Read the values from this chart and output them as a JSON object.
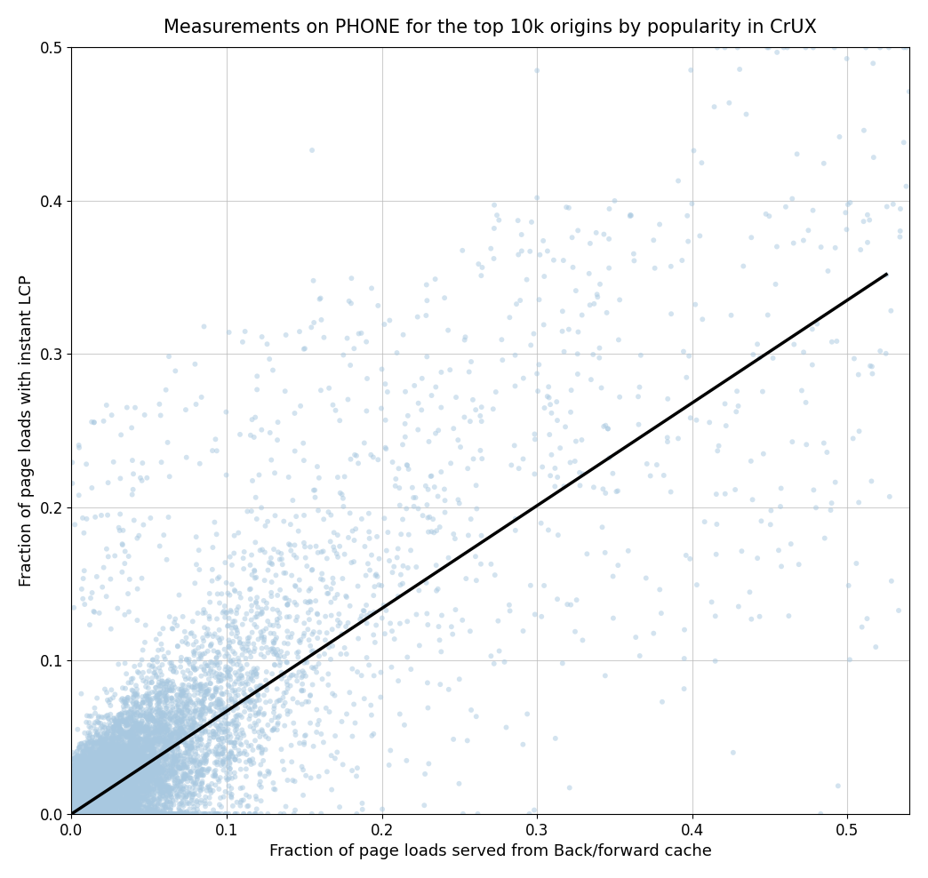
{
  "title": "Measurements on PHONE for the top 10k origins by popularity in CrUX",
  "xlabel": "Fraction of page loads served from Back/forward cache",
  "ylabel": "Fraction of page loads with instant LCP",
  "xlim": [
    0,
    0.54
  ],
  "ylim": [
    0,
    0.5
  ],
  "xticks": [
    0.0,
    0.1,
    0.2,
    0.3,
    0.4,
    0.5
  ],
  "yticks": [
    0.0,
    0.1,
    0.2,
    0.3,
    0.4,
    0.5
  ],
  "scatter_color": "#A8C8E0",
  "scatter_alpha": 0.5,
  "scatter_size": 18,
  "line_color": "black",
  "line_width": 2.5,
  "line_x0": 0.0,
  "line_y0": 0.0,
  "line_x1": 0.525,
  "line_y1": 0.352,
  "n_points": 10000,
  "seed": 42,
  "background_color": "white",
  "title_fontsize": 15,
  "label_fontsize": 13,
  "tick_fontsize": 12,
  "grid_color": "#bbbbbb",
  "grid_alpha": 0.7,
  "grid_linewidth": 0.8
}
